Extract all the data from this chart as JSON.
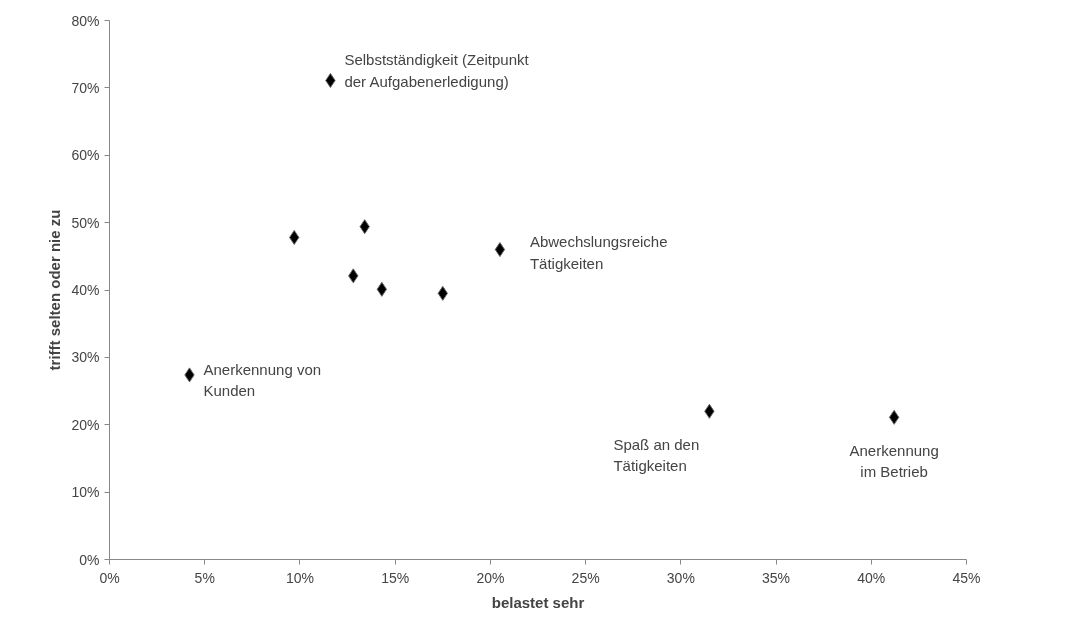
{
  "chart_data": {
    "type": "scatter",
    "xlabel": "belastet sehr",
    "ylabel": "trifft selten oder nie zu",
    "x": [
      11.6,
      9.7,
      13.4,
      20.5,
      12.8,
      14.3,
      17.5,
      4.2,
      31.5,
      41.2
    ],
    "series": [
      {
        "color": "#000000",
        "values": [
          71.1,
          47.8,
          49.4,
          46.0,
          42.1,
          40.1,
          39.5,
          27.4,
          22.0,
          21.1
        ]
      }
    ],
    "marker": "diamond",
    "xlim": [
      0,
      45
    ],
    "xticks": [
      {
        "value": 0,
        "label": "0%"
      },
      {
        "value": 5,
        "label": "5%"
      },
      {
        "value": 10,
        "label": "10%"
      },
      {
        "value": 15,
        "label": "15%"
      },
      {
        "value": 20,
        "label": "20%"
      },
      {
        "value": 25,
        "label": "25%"
      },
      {
        "value": 30,
        "label": "30%"
      },
      {
        "value": 35,
        "label": "35%"
      },
      {
        "value": 40,
        "label": "40%"
      },
      {
        "value": 45,
        "label": "45%"
      }
    ],
    "ylim": [
      0,
      80
    ],
    "yticks": [
      {
        "value": 0,
        "label": "0%"
      },
      {
        "value": 10,
        "label": "10%"
      },
      {
        "value": 20,
        "label": "20%"
      },
      {
        "value": 30,
        "label": "30%"
      },
      {
        "value": 40,
        "label": "40%"
      },
      {
        "value": 50,
        "label": "50%"
      },
      {
        "value": 60,
        "label": "60%"
      },
      {
        "value": 70,
        "label": "70%"
      },
      {
        "value": 80,
        "label": "80%"
      }
    ],
    "grid": false,
    "annotations": [
      {
        "text": "Selbstständigkeit (Zeitpunkt\nder Aufgabenerledigung)",
        "x": 11.6,
        "y": 71.1
      },
      {
        "text": "Abwechslungsreiche\nTätigkeiten",
        "x": 20.5,
        "y": 46.0
      },
      {
        "text": "Anerkennung von\nKunden",
        "x": 4.2,
        "y": 27.4
      },
      {
        "text": "Spaß an den\nTätigkeiten",
        "x": 31.5,
        "y": 22.0
      },
      {
        "text": "Anerkennung\nim Betrieb",
        "x": 41.2,
        "y": 21.1
      }
    ]
  }
}
